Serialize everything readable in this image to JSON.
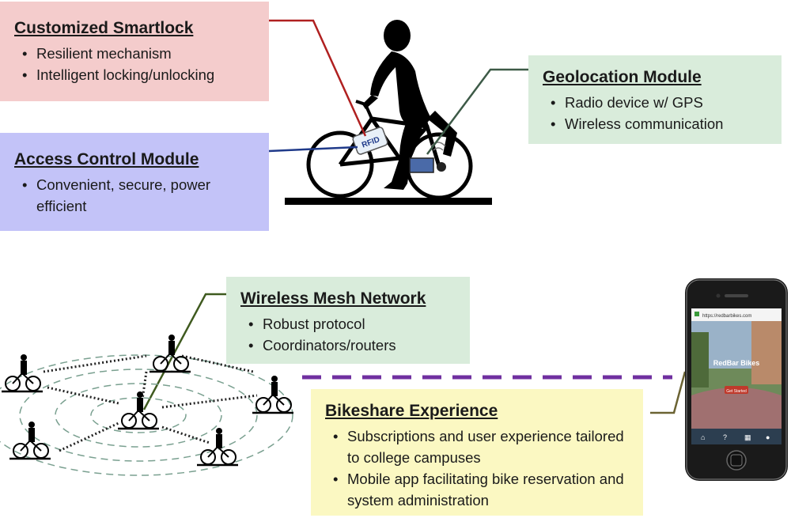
{
  "boxes": {
    "smartlock": {
      "title": "Customized Smartlock",
      "items": [
        "Resilient mechanism",
        "Intelligent locking/unlocking"
      ],
      "color": "#f4cccc"
    },
    "access": {
      "title": "Access Control Module",
      "items": [
        "Convenient, secure, power efficient"
      ],
      "color": "#c3c3f8"
    },
    "geo": {
      "title": "Geolocation Module",
      "items": [
        "Radio device w/ GPS",
        "Wireless communication"
      ],
      "color": "#d9ecdb"
    },
    "mesh": {
      "title": "Wireless Mesh Network",
      "items": [
        "Robust protocol",
        "Coordinators/routers"
      ],
      "color": "#d9ecdb"
    },
    "bikeshare": {
      "title": "Bikeshare Experience",
      "items": [
        "Subscriptions and user experience tailored to college campuses",
        "Mobile app facilitating bike reservation and system administration"
      ],
      "color": "#fbf8c2"
    }
  },
  "bike": {
    "tag_label": "RFID"
  },
  "phone": {
    "url": "https://redbarbikes.com",
    "app_title": "RedBar Bikes",
    "button_label": "Get Started",
    "nav_icons": [
      "home-icon",
      "help-icon",
      "map-icon",
      "user-icon"
    ]
  },
  "colors": {
    "smartlock_line": "#b02020",
    "access_line": "#1f3a8a",
    "geo_line": "#3d5a47",
    "mesh_line": "#3f5a1f",
    "dashed_link": "#7030a0",
    "bikeshare_line": "#6b6333"
  }
}
